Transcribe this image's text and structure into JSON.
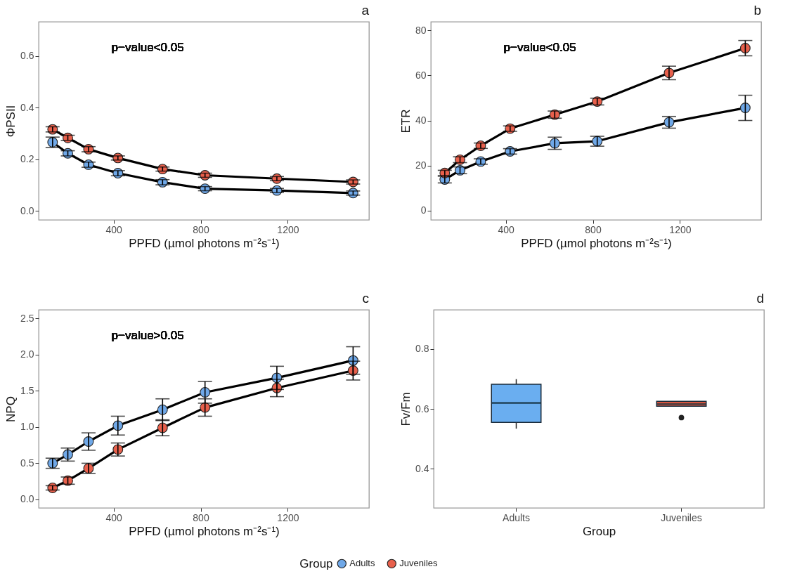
{
  "chart_data": [
    {
      "type": "line",
      "title": "a",
      "xlabel": "PPFD (µmol photons m⁻²s⁻¹)",
      "ylabel": "ΦPSII",
      "x": [
        120,
        190,
        285,
        420,
        625,
        820,
        1150,
        1500
      ],
      "xlim": [
        56,
        1573
      ],
      "xticks": [
        400,
        800,
        1200
      ],
      "ylim": [
        -0.035,
        0.733
      ],
      "yticks": [
        {
          "value": 0,
          "label": "0.0"
        },
        0.2,
        0.4,
        0.6
      ],
      "marker": "circle",
      "annotations": [
        "p−value<0.05"
      ],
      "series": [
        {
          "color": "#6fa8e8",
          "values": [
            0.266,
            0.223,
            0.179,
            0.146,
            0.111,
            0.086,
            0.079,
            0.069
          ],
          "errors": [
            0.02,
            0.01,
            0.01,
            0.01,
            0.01,
            0.008,
            0.008,
            0.008
          ]
        },
        {
          "color": "#e8604c",
          "values": [
            0.316,
            0.283,
            0.239,
            0.205,
            0.162,
            0.138,
            0.125,
            0.112
          ],
          "errors": [
            0.01,
            0.01,
            0.01,
            0.008,
            0.008,
            0.008,
            0.008,
            0.008
          ]
        }
      ]
    },
    {
      "type": "line",
      "title": "b",
      "xlabel": "PPFD (µmol photons m⁻²s⁻¹)",
      "ylabel": "ETR",
      "x": [
        120,
        190,
        285,
        420,
        625,
        820,
        1150,
        1500
      ],
      "xlim": [
        56,
        1573
      ],
      "xticks": [
        400,
        800,
        1200
      ],
      "ylim": [
        -4.1,
        83.8
      ],
      "yticks": [
        0,
        20,
        40,
        60,
        80
      ],
      "marker": "circle",
      "annotations": [
        "p−value<0.05"
      ],
      "series": [
        {
          "color": "#6fa8e8",
          "values": [
            13.8,
            17.9,
            21.8,
            26.3,
            29.9,
            30.8,
            39.2,
            45.6
          ],
          "errors": [
            1.5,
            1.5,
            1.2,
            1.2,
            2.7,
            2.2,
            2.6,
            5.6
          ]
        },
        {
          "color": "#e8604c",
          "values": [
            16.7,
            22.6,
            28.8,
            36.4,
            42.6,
            48.4,
            61.1,
            72.1
          ],
          "errors": [
            1.2,
            1.3,
            1.2,
            1.2,
            1.6,
            1.5,
            3.0,
            3.4
          ]
        }
      ]
    },
    {
      "type": "line",
      "title": "c",
      "xlabel": "PPFD (µmol photons m⁻²s⁻¹)",
      "ylabel": "NPQ",
      "x": [
        120,
        190,
        285,
        420,
        625,
        820,
        1150,
        1500
      ],
      "xlim": [
        56,
        1573
      ],
      "xticks": [
        400,
        800,
        1200
      ],
      "ylim": [
        -0.117,
        2.62
      ],
      "yticks": [
        {
          "value": 0,
          "label": "0.0"
        },
        0.5,
        {
          "value": 1,
          "label": "1.0"
        },
        1.5,
        {
          "value": 2,
          "label": "2.0"
        },
        2.5
      ],
      "marker": "circle",
      "legend": "bottom",
      "legend_title": "Group",
      "annotations": [
        "p−value>0.05"
      ],
      "series": [
        {
          "name": "Adults",
          "color": "#6fa8e8",
          "values": [
            0.5,
            0.62,
            0.8,
            1.02,
            1.24,
            1.48,
            1.68,
            1.92
          ],
          "errors": [
            0.07,
            0.09,
            0.12,
            0.13,
            0.15,
            0.15,
            0.16,
            0.19
          ]
        },
        {
          "name": "Juveniles",
          "color": "#e8604c",
          "values": [
            0.16,
            0.26,
            0.43,
            0.69,
            0.99,
            1.27,
            1.54,
            1.78
          ],
          "errors": [
            0.03,
            0.05,
            0.07,
            0.09,
            0.11,
            0.12,
            0.12,
            0.13
          ]
        }
      ]
    },
    {
      "type": "box",
      "title": "d",
      "xlabel": "Group",
      "ylabel": "Fv/Fm",
      "categories": [
        "Adults",
        "Juveniles"
      ],
      "ylim": [
        0.27,
        0.93
      ],
      "yticks": [
        0.4,
        0.6,
        0.8
      ],
      "colors": [
        "#6aaef0",
        "#e85a40"
      ],
      "boxes": [
        {
          "low": 0.534,
          "q1": 0.555,
          "median": 0.62,
          "q3": 0.682,
          "high": 0.699
        },
        {
          "low": 0.609,
          "q1": 0.609,
          "median": 0.616,
          "q3": 0.625,
          "high": 0.625,
          "outliers": [
            0.571
          ]
        }
      ]
    }
  ]
}
